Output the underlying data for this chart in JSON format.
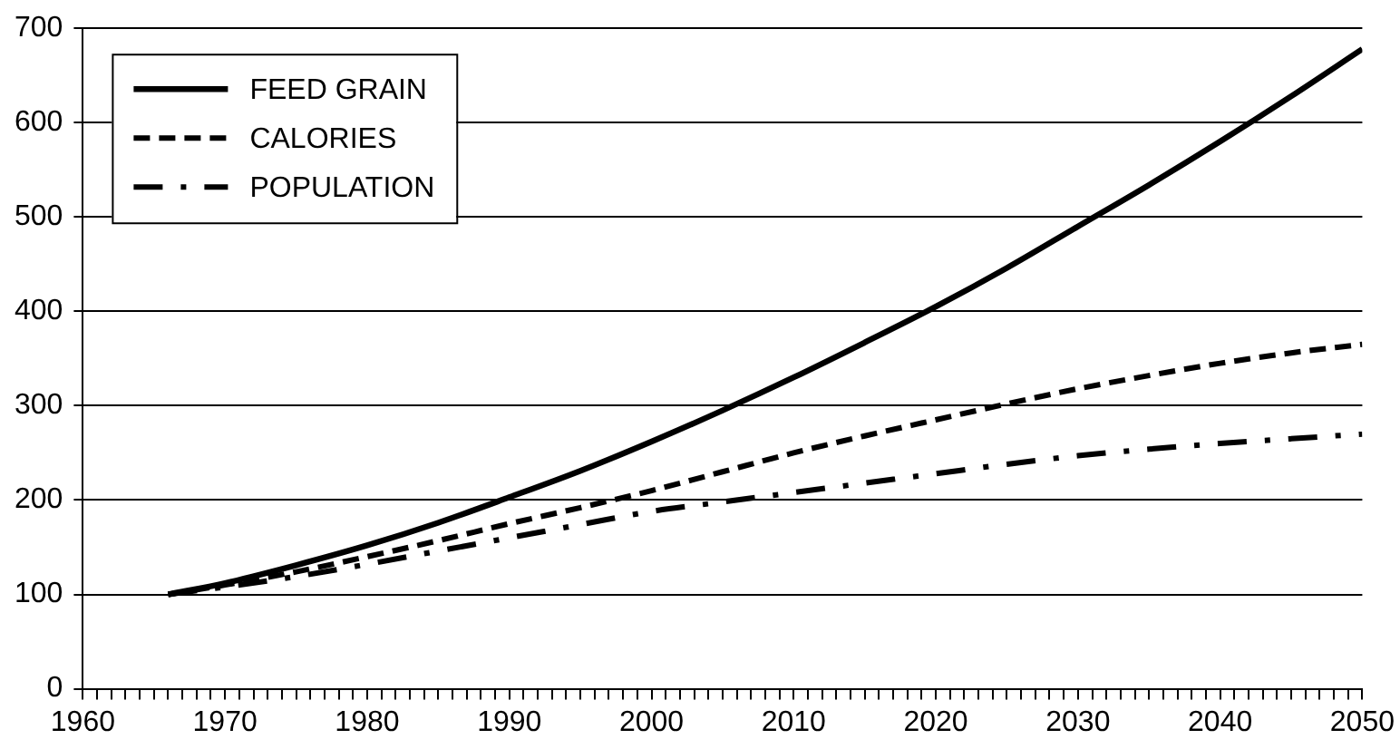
{
  "chart_data": {
    "type": "line",
    "x": [
      1966,
      1970,
      1975,
      1980,
      1985,
      1990,
      1995,
      2000,
      2005,
      2010,
      2015,
      2020,
      2025,
      2030,
      2035,
      2040,
      2045,
      2050
    ],
    "series": [
      {
        "name": "FEED GRAIN",
        "color": "#000000",
        "line_style": "solid",
        "values": [
          100,
          112,
          131,
          152,
          176,
          203,
          231,
          262,
          295,
          330,
          367,
          405,
          446,
          490,
          534,
          580,
          628,
          678
        ]
      },
      {
        "name": "CALORIES",
        "color": "#000000",
        "line_style": "dashed",
        "values": [
          100,
          110,
          124,
          140,
          157,
          175,
          192,
          210,
          230,
          250,
          268,
          285,
          302,
          318,
          332,
          345,
          356,
          365
        ]
      },
      {
        "name": "POPULATION",
        "color": "#000000",
        "line_style": "dashdot",
        "values": [
          100,
          108,
          119,
          132,
          146,
          160,
          174,
          188,
          198,
          208,
          218,
          228,
          238,
          247,
          254,
          260,
          265,
          270
        ]
      }
    ],
    "xlim": [
      1960,
      2050
    ],
    "xticks": [
      1960,
      {
        "value": 1961,
        "label": null
      },
      {
        "value": 1962,
        "label": null
      },
      {
        "value": 1963,
        "label": null
      },
      {
        "value": 1964,
        "label": null
      },
      {
        "value": 1965,
        "label": null
      },
      {
        "value": 1966,
        "label": null
      },
      {
        "value": 1967,
        "label": null
      },
      {
        "value": 1968,
        "label": null
      },
      {
        "value": 1969,
        "label": null
      },
      1970,
      {
        "value": 1971,
        "label": null
      },
      {
        "value": 1972,
        "label": null
      },
      {
        "value": 1973,
        "label": null
      },
      {
        "value": 1974,
        "label": null
      },
      {
        "value": 1975,
        "label": null
      },
      {
        "value": 1976,
        "label": null
      },
      {
        "value": 1977,
        "label": null
      },
      {
        "value": 1978,
        "label": null
      },
      {
        "value": 1979,
        "label": null
      },
      1980,
      {
        "value": 1981,
        "label": null
      },
      {
        "value": 1982,
        "label": null
      },
      {
        "value": 1983,
        "label": null
      },
      {
        "value": 1984,
        "label": null
      },
      {
        "value": 1985,
        "label": null
      },
      {
        "value": 1986,
        "label": null
      },
      {
        "value": 1987,
        "label": null
      },
      {
        "value": 1988,
        "label": null
      },
      {
        "value": 1989,
        "label": null
      },
      1990,
      {
        "value": 1991,
        "label": null
      },
      {
        "value": 1992,
        "label": null
      },
      {
        "value": 1993,
        "label": null
      },
      {
        "value": 1994,
        "label": null
      },
      {
        "value": 1995,
        "label": null
      },
      {
        "value": 1996,
        "label": null
      },
      {
        "value": 1997,
        "label": null
      },
      {
        "value": 1998,
        "label": null
      },
      {
        "value": 1999,
        "label": null
      },
      2000,
      {
        "value": 2001,
        "label": null
      },
      {
        "value": 2002,
        "label": null
      },
      {
        "value": 2003,
        "label": null
      },
      {
        "value": 2004,
        "label": null
      },
      {
        "value": 2005,
        "label": null
      },
      {
        "value": 2006,
        "label": null
      },
      {
        "value": 2007,
        "label": null
      },
      {
        "value": 2008,
        "label": null
      },
      {
        "value": 2009,
        "label": null
      },
      2010,
      {
        "value": 2011,
        "label": null
      },
      {
        "value": 2012,
        "label": null
      },
      {
        "value": 2013,
        "label": null
      },
      {
        "value": 2014,
        "label": null
      },
      {
        "value": 2015,
        "label": null
      },
      {
        "value": 2016,
        "label": null
      },
      {
        "value": 2017,
        "label": null
      },
      {
        "value": 2018,
        "label": null
      },
      {
        "value": 2019,
        "label": null
      },
      2020,
      {
        "value": 2021,
        "label": null
      },
      {
        "value": 2022,
        "label": null
      },
      {
        "value": 2023,
        "label": null
      },
      {
        "value": 2024,
        "label": null
      },
      {
        "value": 2025,
        "label": null
      },
      {
        "value": 2026,
        "label": null
      },
      {
        "value": 2027,
        "label": null
      },
      {
        "value": 2028,
        "label": null
      },
      {
        "value": 2029,
        "label": null
      },
      2030,
      {
        "value": 2031,
        "label": null
      },
      {
        "value": 2032,
        "label": null
      },
      {
        "value": 2033,
        "label": null
      },
      {
        "value": 2034,
        "label": null
      },
      {
        "value": 2035,
        "label": null
      },
      {
        "value": 2036,
        "label": null
      },
      {
        "value": 2037,
        "label": null
      },
      {
        "value": 2038,
        "label": null
      },
      {
        "value": 2039,
        "label": null
      },
      2040,
      {
        "value": 2041,
        "label": null
      },
      {
        "value": 2042,
        "label": null
      },
      {
        "value": 2043,
        "label": null
      },
      {
        "value": 2044,
        "label": null
      },
      {
        "value": 2045,
        "label": null
      },
      {
        "value": 2046,
        "label": null
      },
      {
        "value": 2047,
        "label": null
      },
      {
        "value": 2048,
        "label": null
      },
      {
        "value": 2049,
        "label": null
      },
      2050
    ],
    "ylim": [
      0,
      700
    ],
    "yticks": [
      0,
      100,
      200,
      300,
      400,
      500,
      600,
      700
    ],
    "grid": "y",
    "legend": "top left",
    "marker": "none"
  }
}
